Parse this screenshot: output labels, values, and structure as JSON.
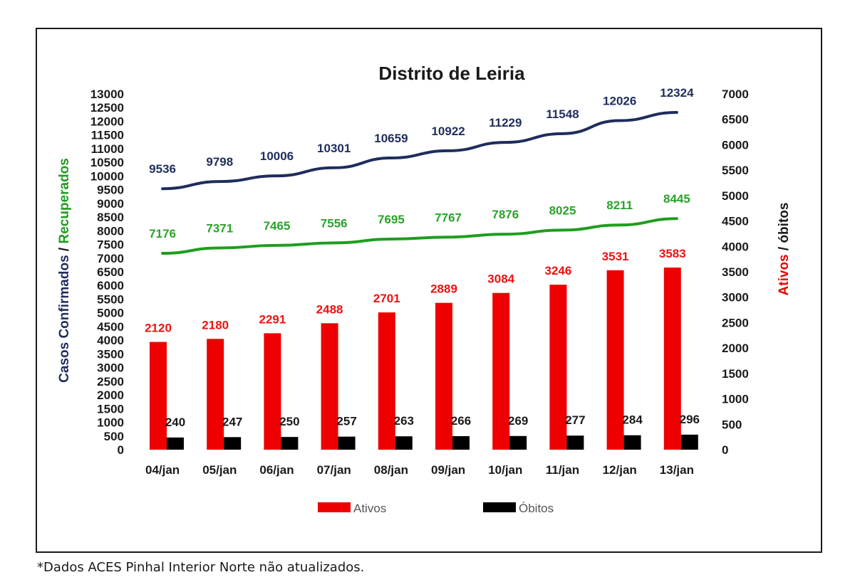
{
  "footnote": "*Dados ACES Pinhal Interior Norte não atualizados.",
  "chart_data": {
    "type": "bar",
    "title": "Distrito de Leiria",
    "categories": [
      "04/jan",
      "05/jan",
      "06/jan",
      "07/jan",
      "08/jan",
      "09/jan",
      "10/jan",
      "11/jan",
      "12/jan",
      "13/jan"
    ],
    "left_axis": {
      "label_part1": "Casos Confirmados",
      "label_sep": " / ",
      "label_part2": "Recuperados",
      "range": [
        0,
        13000
      ],
      "ticks": [
        0,
        500,
        1000,
        1500,
        2000,
        2500,
        3000,
        3500,
        4000,
        4500,
        5000,
        5500,
        6000,
        6500,
        7000,
        7500,
        8000,
        8500,
        9000,
        9500,
        10000,
        10500,
        11000,
        11500,
        12000,
        12500,
        13000
      ]
    },
    "right_axis": {
      "label_part1": "Ativos",
      "label_sep": " / ",
      "label_part2": "óbitos",
      "range": [
        0,
        7000
      ],
      "ticks": [
        0,
        500,
        1000,
        1500,
        2000,
        2500,
        3000,
        3500,
        4000,
        4500,
        5000,
        5500,
        6000,
        6500,
        7000
      ]
    },
    "series": [
      {
        "name": "Casos Confirmados",
        "type": "line",
        "axis": "left",
        "color": "#1f2d5c",
        "label_color": "#1f2d5c",
        "values": [
          9536,
          9798,
          10006,
          10301,
          10659,
          10922,
          11229,
          11548,
          12026,
          12324
        ]
      },
      {
        "name": "Recuperados",
        "type": "line",
        "axis": "left",
        "color": "#1e9e1e",
        "label_color": "#2aa32a",
        "values": [
          7176,
          7371,
          7465,
          7556,
          7695,
          7767,
          7876,
          8025,
          8211,
          8445
        ]
      },
      {
        "name": "Ativos",
        "type": "bar",
        "axis": "right",
        "color": "#ee0000",
        "label_color": "#ee1111",
        "values": [
          2120,
          2180,
          2291,
          2488,
          2701,
          2889,
          3084,
          3246,
          3531,
          3583
        ]
      },
      {
        "name": "Óbitos",
        "type": "bar",
        "axis": "right",
        "color": "#000000",
        "label_color": "#1a1a1a",
        "values": [
          240,
          247,
          250,
          257,
          263,
          266,
          269,
          277,
          284,
          296
        ]
      }
    ],
    "legend": {
      "placement": "bottom",
      "entries": [
        {
          "label": "Ativos",
          "color": "#ee0000"
        },
        {
          "label": "Óbitos",
          "color": "#000000"
        }
      ]
    },
    "grid": false
  }
}
